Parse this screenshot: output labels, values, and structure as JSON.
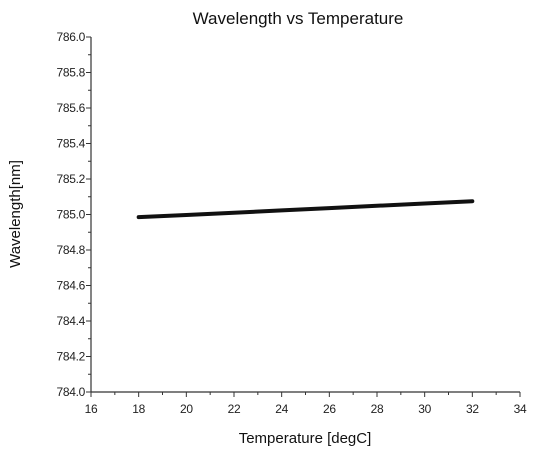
{
  "chart_data": {
    "type": "line",
    "title": "Wavelength vs Temperature",
    "xlabel": "Temperature [degC]",
    "ylabel": "Wavelength[nm]",
    "xlim": [
      16,
      34
    ],
    "ylim": [
      784.0,
      786.0
    ],
    "x_ticks": [
      "16",
      "18",
      "20",
      "22",
      "24",
      "26",
      "28",
      "30",
      "32",
      "34"
    ],
    "y_ticks": [
      "784.0",
      "784.2",
      "784.4",
      "784.6",
      "784.8",
      "785.0",
      "785.2",
      "785.4",
      "785.6",
      "785.8",
      "786.0"
    ],
    "grid": false,
    "series": [
      {
        "color": "#111111",
        "x": [
          18,
          20,
          22,
          24,
          26,
          28,
          30,
          32
        ],
        "y": [
          784.985,
          784.997,
          785.01,
          785.023,
          785.036,
          785.049,
          785.062,
          785.075
        ]
      }
    ]
  }
}
